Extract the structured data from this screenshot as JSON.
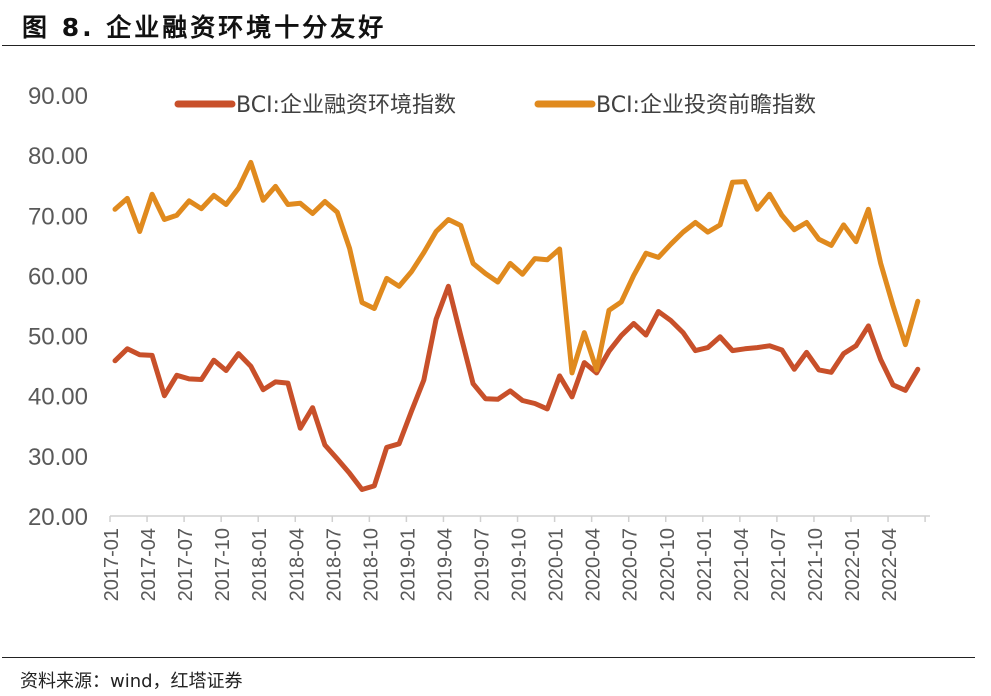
{
  "header": {
    "title": "图 8. 企业融资环境十分友好"
  },
  "footer": {
    "source": "资料来源：wind，红塔证券"
  },
  "chart_data": {
    "type": "line",
    "title": "图 8. 企业融资环境十分友好",
    "xlabel": "",
    "ylabel": "",
    "ylim": [
      20,
      90
    ],
    "yticks": [
      "20.00",
      "30.00",
      "40.00",
      "50.00",
      "60.00",
      "70.00",
      "80.00",
      "90.00"
    ],
    "ytick_values": [
      20,
      30,
      40,
      50,
      60,
      70,
      80,
      90
    ],
    "xtick_labels": [
      "2017-01",
      "2017-04",
      "2017-07",
      "2017-10",
      "2018-01",
      "2018-04",
      "2018-07",
      "2018-10",
      "2019-01",
      "2019-04",
      "2019-07",
      "2019-10",
      "2020-01",
      "2020-04",
      "2020-07",
      "2020-10",
      "2021-01",
      "2021-04",
      "2021-07",
      "2021-10",
      "2022-01",
      "2022-04"
    ],
    "grid": false,
    "legend_position": "top",
    "x": [
      "2017-01",
      "2017-02",
      "2017-03",
      "2017-04",
      "2017-05",
      "2017-06",
      "2017-07",
      "2017-08",
      "2017-09",
      "2017-10",
      "2017-11",
      "2017-12",
      "2018-01",
      "2018-02",
      "2018-03",
      "2018-04",
      "2018-05",
      "2018-06",
      "2018-07",
      "2018-08",
      "2018-09",
      "2018-10",
      "2018-11",
      "2018-12",
      "2019-01",
      "2019-02",
      "2019-03",
      "2019-04",
      "2019-05",
      "2019-06",
      "2019-07",
      "2019-08",
      "2019-09",
      "2019-10",
      "2019-11",
      "2019-12",
      "2020-01",
      "2020-02",
      "2020-03",
      "2020-04",
      "2020-05",
      "2020-06",
      "2020-07",
      "2020-08",
      "2020-09",
      "2020-10",
      "2020-11",
      "2020-12",
      "2021-01",
      "2021-02",
      "2021-03",
      "2021-04",
      "2021-05",
      "2021-06",
      "2021-07",
      "2021-08",
      "2021-09",
      "2021-10",
      "2021-11",
      "2021-12",
      "2022-01",
      "2022-02",
      "2022-03",
      "2022-04",
      "2022-05",
      "2022-06"
    ],
    "series": [
      {
        "name": "BCI:企业融资环境指数",
        "color": "#C8502A",
        "values": [
          45.8,
          47.8,
          46.8,
          46.7,
          40.0,
          43.4,
          42.8,
          42.7,
          45.9,
          44.2,
          47.0,
          44.9,
          41.0,
          42.3,
          42.1,
          34.6,
          38.0,
          31.8,
          29.5,
          27.1,
          24.4,
          25.0,
          31.4,
          32.0,
          37.4,
          42.6,
          52.7,
          58.2,
          50.0,
          42.0,
          39.5,
          39.4,
          40.8,
          39.2,
          38.7,
          37.8,
          43.3,
          39.8,
          45.5,
          43.8,
          47.4,
          50.0,
          52.0,
          50.1,
          54.0,
          52.5,
          50.5,
          47.5,
          48.0,
          49.8,
          47.5,
          47.8,
          48.0,
          48.3,
          47.6,
          44.4,
          47.2,
          44.3,
          43.9,
          47.0,
          48.3,
          51.6,
          46.0,
          41.8,
          40.9,
          44.4
        ]
      },
      {
        "name": "BCI:企业投资前瞻指数",
        "color": "#E08A1E",
        "values": [
          71.0,
          72.8,
          67.3,
          73.5,
          69.3,
          70.0,
          72.4,
          71.1,
          73.3,
          71.8,
          74.5,
          78.8,
          72.5,
          74.8,
          71.8,
          72.0,
          70.3,
          72.3,
          70.5,
          64.5,
          55.5,
          54.5,
          59.5,
          58.2,
          60.6,
          63.8,
          67.3,
          69.3,
          68.3,
          62.0,
          60.3,
          58.9,
          62.0,
          60.2,
          62.8,
          62.6,
          64.4,
          43.8,
          50.5,
          44.3,
          54.2,
          55.6,
          60.0,
          63.7,
          63.0,
          65.2,
          67.2,
          68.8,
          67.2,
          68.4,
          75.5,
          75.6,
          71.0,
          73.5,
          70.0,
          67.6,
          68.8,
          66.0,
          65.0,
          68.4,
          65.6,
          71.0,
          62.0,
          55.0,
          48.5,
          55.7
        ]
      }
    ]
  }
}
